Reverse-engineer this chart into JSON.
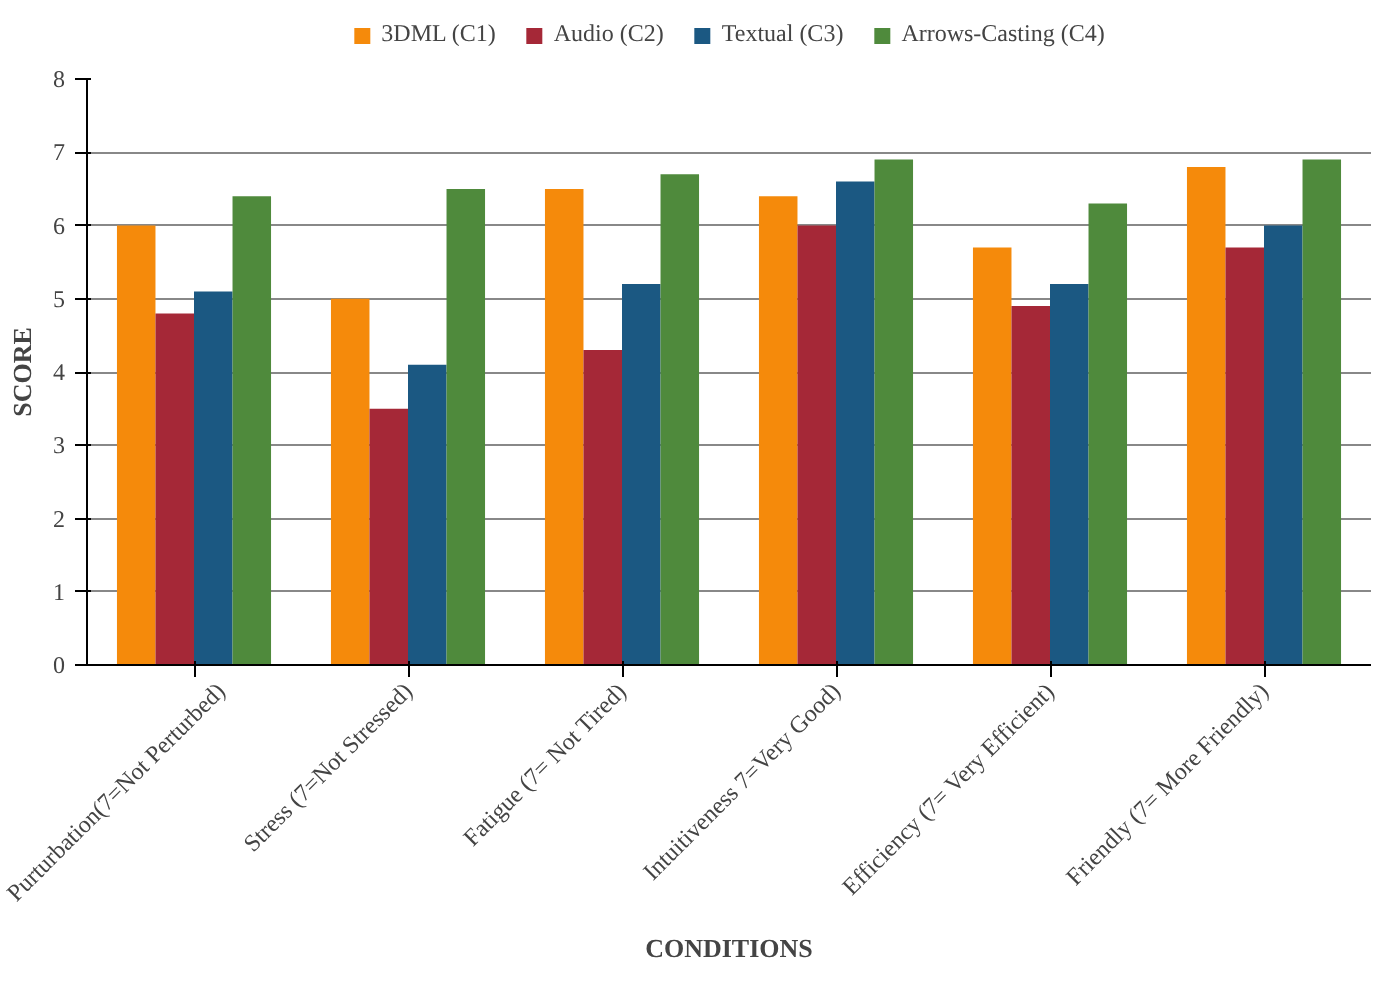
{
  "chart_data": {
    "type": "bar",
    "xlabel": "CONDITIONS",
    "ylabel": "SCORE",
    "categories": [
      "Purturbation(7=Not Perturbed)",
      "Stress (7=Not Stressed)",
      "Fatigue (7= Not Tired)",
      "Intuitiveness 7=Very Good)",
      "Efficiency (7= Very Efficient)",
      "Friendly (7= More Friendly)"
    ],
    "series": [
      {
        "name": "3DML (C1)",
        "color": "#f58a0b",
        "values": [
          6.0,
          5.0,
          6.5,
          6.4,
          5.7,
          6.8
        ]
      },
      {
        "name": "Audio (C2)",
        "color": "#a52837",
        "values": [
          4.8,
          3.5,
          4.3,
          6.0,
          4.9,
          5.7
        ]
      },
      {
        "name": "Textual (C3)",
        "color": "#1b5882",
        "values": [
          5.1,
          4.1,
          5.2,
          6.6,
          5.2,
          6.0
        ]
      },
      {
        "name": "Arrows-Casting (C4)",
        "color": "#4f8a3c",
        "values": [
          6.4,
          6.5,
          6.7,
          6.9,
          6.3,
          6.9
        ]
      }
    ],
    "ylim": [
      0,
      8
    ],
    "yticks": [
      0,
      1,
      2,
      3,
      4,
      5,
      6,
      7,
      8
    ],
    "grid": "y",
    "legend": "top"
  }
}
